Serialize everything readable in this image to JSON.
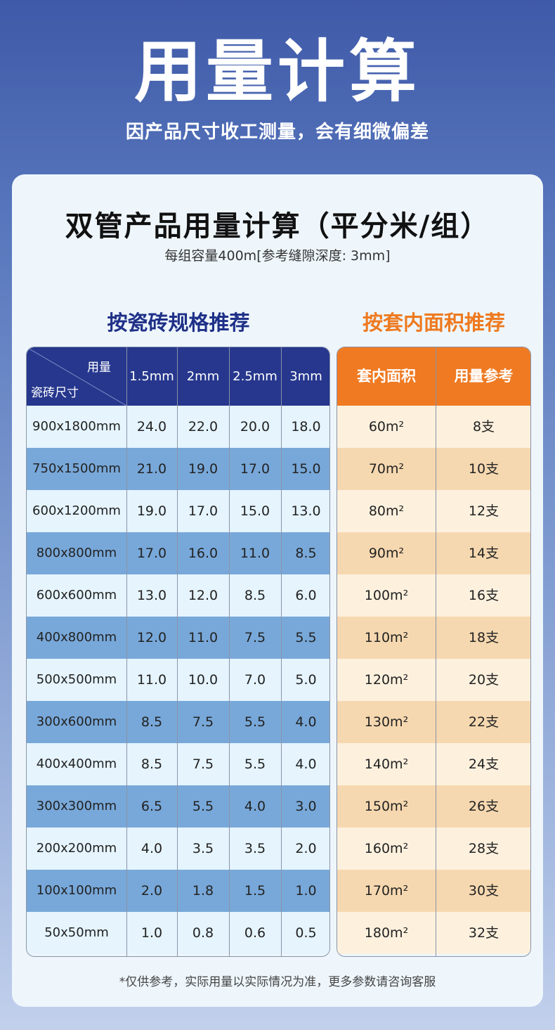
{
  "hero": {
    "title": "用量计算",
    "subtitle": "因产品尺寸收工测量，会有细微偏差"
  },
  "card": {
    "title": "双管产品用量计算（平分米/组）",
    "subtitle": "每组容量400m[参考缝隙深度: 3mm]"
  },
  "left_section": {
    "label": "按瓷砖规格推荐",
    "corner_top": "用量",
    "corner_bottom": "瓷砖尺寸",
    "columns": [
      "1.5mm",
      "2mm",
      "2.5mm",
      "3mm"
    ],
    "rows": [
      {
        "size": "900x1800mm",
        "values": [
          "24.0",
          "22.0",
          "20.0",
          "18.0"
        ]
      },
      {
        "size": "750x1500mm",
        "values": [
          "21.0",
          "19.0",
          "17.0",
          "15.0"
        ]
      },
      {
        "size": "600x1200mm",
        "values": [
          "19.0",
          "17.0",
          "15.0",
          "13.0"
        ]
      },
      {
        "size": "800x800mm",
        "values": [
          "17.0",
          "16.0",
          "11.0",
          "8.5"
        ]
      },
      {
        "size": "600x600mm",
        "values": [
          "13.0",
          "12.0",
          "8.5",
          "6.0"
        ]
      },
      {
        "size": "400x800mm",
        "values": [
          "12.0",
          "11.0",
          "7.5",
          "5.5"
        ]
      },
      {
        "size": "500x500mm",
        "values": [
          "11.0",
          "10.0",
          "7.0",
          "5.0"
        ]
      },
      {
        "size": "300x600mm",
        "values": [
          "8.5",
          "7.5",
          "5.5",
          "4.0"
        ]
      },
      {
        "size": "400x400mm",
        "values": [
          "8.5",
          "7.5",
          "5.5",
          "4.0"
        ]
      },
      {
        "size": "300x300mm",
        "values": [
          "6.5",
          "5.5",
          "4.0",
          "3.0"
        ]
      },
      {
        "size": "200x200mm",
        "values": [
          "4.0",
          "3.5",
          "3.5",
          "2.0"
        ]
      },
      {
        "size": "100x100mm",
        "values": [
          "2.0",
          "1.8",
          "1.5",
          "1.0"
        ]
      },
      {
        "size": "50x50mm",
        "values": [
          "1.0",
          "0.8",
          "0.6",
          "0.5"
        ]
      }
    ]
  },
  "right_section": {
    "label": "按套内面积推荐",
    "columns": [
      "套内面积",
      "用量参考"
    ],
    "rows": [
      {
        "area": "60m²",
        "amount": "8支"
      },
      {
        "area": "70m²",
        "amount": "10支"
      },
      {
        "area": "80m²",
        "amount": "12支"
      },
      {
        "area": "90m²",
        "amount": "14支"
      },
      {
        "area": "100m²",
        "amount": "16支"
      },
      {
        "area": "110m²",
        "amount": "18支"
      },
      {
        "area": "120m²",
        "amount": "20支"
      },
      {
        "area": "130m²",
        "amount": "22支"
      },
      {
        "area": "140m²",
        "amount": "24支"
      },
      {
        "area": "150m²",
        "amount": "26支"
      },
      {
        "area": "160m²",
        "amount": "28支"
      },
      {
        "area": "170m²",
        "amount": "30支"
      },
      {
        "area": "180m²",
        "amount": "32支"
      }
    ]
  },
  "footnote": "*仅供参考，实际用量以实际情况为准，更多参数请咨询客服",
  "colors": {
    "left_header": "#26378d",
    "left_row_alt": "#78a8d9",
    "right_header": "#ef7a22",
    "right_row_alt": "#f6d8b0"
  }
}
